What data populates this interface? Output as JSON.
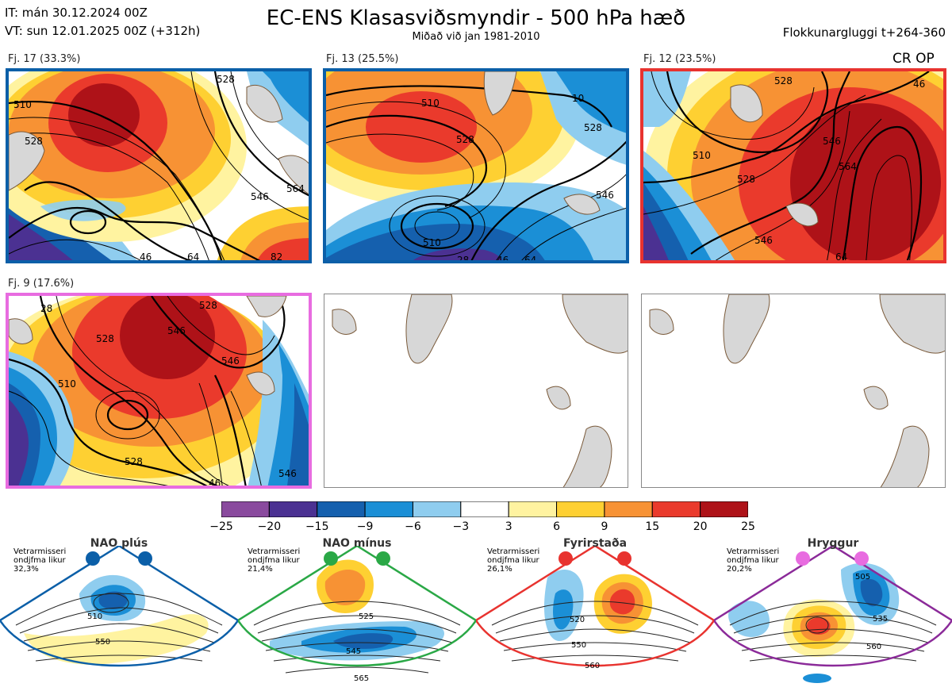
{
  "header": {
    "issue_time": "IT: mán 30.12.2024 00Z",
    "valid_time": "VT: sun 12.01.2025 00Z  (+312h)",
    "title": "EC-ENS Klasasviðsmyndir - 500 hPa hæð",
    "subtitle": "Miðað við jan 1981-2010",
    "window": "Flokkunargluggi t+264-360"
  },
  "clusters": [
    {
      "label": "Fj. 17 (33.3%)",
      "frame_color": "#0b5fa8",
      "contours": [
        "510",
        "528",
        "528",
        "546",
        "564",
        "46",
        "64",
        "82"
      ]
    },
    {
      "label": "Fj. 13 (25.5%)",
      "frame_color": "#0b5fa8",
      "contours": [
        "510",
        "528",
        "528",
        "546",
        "510",
        "28",
        "46",
        "64",
        "10"
      ]
    },
    {
      "label": "Fj. 12 (23.5%)",
      "frame_color": "#e8332f",
      "contours": [
        "528",
        "510",
        "546",
        "564",
        "546",
        "528",
        "64",
        "46"
      ],
      "tag": "CR OP"
    },
    {
      "label": "Fj. 9 (17.6%)",
      "frame_color": "#e86ce0",
      "contours": [
        "528",
        "546",
        "528",
        "546",
        "510",
        "528",
        "546",
        "46",
        "28"
      ]
    }
  ],
  "colorbar": {
    "labels": [
      "−25",
      "−20",
      "−15",
      "−9",
      "−6",
      "−3",
      "3",
      "6",
      "9",
      "15",
      "20",
      "25"
    ],
    "colors": [
      "#8a4a9e",
      "#4b3192",
      "#1560ae",
      "#1b8fd6",
      "#8fcdef",
      "#ffffff",
      "#fff3a0",
      "#fed032",
      "#f79234",
      "#ea3a2c",
      "#ae1218"
    ]
  },
  "regimes": [
    {
      "name": "NAO plús",
      "note": "Vetrarmisseri ondjfma likur 32,3%",
      "color": "#0b5fa8",
      "contours": [
        "510",
        "550"
      ]
    },
    {
      "name": "NAO mínus",
      "note": "Vetrarmisseri ondjfma likur 21,4%",
      "color": "#2aa846",
      "contours": [
        "525",
        "545",
        "565"
      ]
    },
    {
      "name": "Fyrirstaða",
      "note": "Vetrarmisseri ondjfma likur 26,1%",
      "color": "#e8332f",
      "contours": [
        "520",
        "550",
        "560"
      ]
    },
    {
      "name": "Hryggur",
      "note": "Vetrarmisseri ondjfma likur 20,2%",
      "color": "#8b2a99",
      "contours": [
        "505",
        "535",
        "560"
      ]
    }
  ]
}
